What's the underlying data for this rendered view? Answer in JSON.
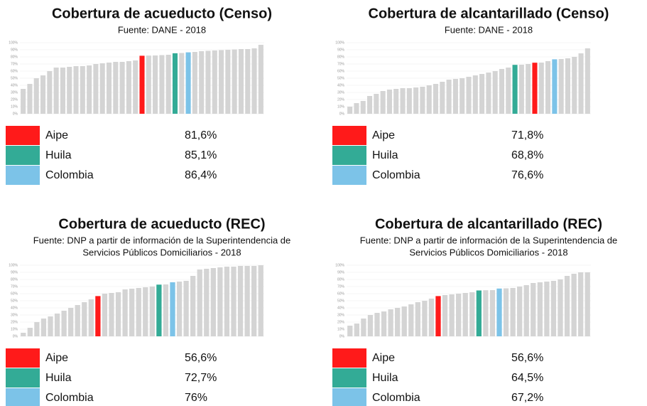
{
  "chart_data": [
    {
      "type": "bar",
      "title": "Cobertura de acueducto (Censo)",
      "subtitle": [
        "Fuente: DANE - 2018"
      ],
      "values": [
        35,
        42,
        50,
        54,
        60,
        65,
        65,
        66,
        67,
        67,
        68,
        70,
        71,
        72,
        73,
        73,
        74,
        75,
        81.6,
        81.8,
        82,
        82.5,
        83,
        85.1,
        85.5,
        86.4,
        87,
        88,
        88.5,
        89,
        89.5,
        90,
        90.5,
        91,
        91,
        92,
        97
      ],
      "colors": [
        "#d4d4d4",
        "#d4d4d4",
        "#d4d4d4",
        "#d4d4d4",
        "#d4d4d4",
        "#d4d4d4",
        "#d4d4d4",
        "#d4d4d4",
        "#d4d4d4",
        "#d4d4d4",
        "#d4d4d4",
        "#d4d4d4",
        "#d4d4d4",
        "#d4d4d4",
        "#d4d4d4",
        "#d4d4d4",
        "#d4d4d4",
        "#d4d4d4",
        "#ff1a1a",
        "#d4d4d4",
        "#d4d4d4",
        "#d4d4d4",
        "#d4d4d4",
        "#33ab96",
        "#d4d4d4",
        "#7cc3e8",
        "#d4d4d4",
        "#d4d4d4",
        "#d4d4d4",
        "#d4d4d4",
        "#d4d4d4",
        "#d4d4d4",
        "#d4d4d4",
        "#d4d4d4",
        "#d4d4d4",
        "#d4d4d4",
        "#d4d4d4"
      ],
      "ylim": [
        0,
        100
      ],
      "yticks": [
        {
          "value": 0,
          "label": "0%"
        },
        {
          "value": 10,
          "label": "10%"
        },
        {
          "value": 20,
          "label": "20%"
        },
        {
          "value": 30,
          "label": "30%"
        },
        {
          "value": 40,
          "label": "40%"
        },
        {
          "value": 50,
          "label": "50%"
        },
        {
          "value": 60,
          "label": "60%"
        },
        {
          "value": 70,
          "label": "70%"
        },
        {
          "value": 80,
          "label": "80%"
        },
        {
          "value": 90,
          "label": "90%"
        },
        {
          "value": 100,
          "label": "100%"
        }
      ],
      "grid": true,
      "legend": [
        {
          "name": "Aipe",
          "color": "#ff1a1a",
          "value": 81.6,
          "label": "81,6%"
        },
        {
          "name": "Huila",
          "color": "#33ab96",
          "value": 85.1,
          "label": "85,1%"
        },
        {
          "name": "Colombia",
          "color": "#7cc3e8",
          "value": 86.4,
          "label": "86,4%"
        }
      ]
    },
    {
      "type": "bar",
      "title": "Cobertura de alcantarillado (Censo)",
      "subtitle": [
        "Fuente: DANE - 2018"
      ],
      "values": [
        10,
        15,
        18,
        25,
        28,
        32,
        34,
        35,
        36,
        36,
        37,
        38,
        40,
        42,
        45,
        48,
        49,
        50,
        52,
        54,
        56,
        58,
        60,
        63,
        65,
        68.8,
        69,
        70,
        71.8,
        72,
        74,
        76.6,
        77,
        78,
        80,
        85,
        92
      ],
      "colors": [
        "#d4d4d4",
        "#d4d4d4",
        "#d4d4d4",
        "#d4d4d4",
        "#d4d4d4",
        "#d4d4d4",
        "#d4d4d4",
        "#d4d4d4",
        "#d4d4d4",
        "#d4d4d4",
        "#d4d4d4",
        "#d4d4d4",
        "#d4d4d4",
        "#d4d4d4",
        "#d4d4d4",
        "#d4d4d4",
        "#d4d4d4",
        "#d4d4d4",
        "#d4d4d4",
        "#d4d4d4",
        "#d4d4d4",
        "#d4d4d4",
        "#d4d4d4",
        "#d4d4d4",
        "#d4d4d4",
        "#33ab96",
        "#d4d4d4",
        "#d4d4d4",
        "#ff1a1a",
        "#d4d4d4",
        "#d4d4d4",
        "#7cc3e8",
        "#d4d4d4",
        "#d4d4d4",
        "#d4d4d4",
        "#d4d4d4",
        "#d4d4d4"
      ],
      "ylim": [
        0,
        100
      ],
      "yticks": [
        {
          "value": 0,
          "label": "0%"
        },
        {
          "value": 10,
          "label": "10%"
        },
        {
          "value": 20,
          "label": "20%"
        },
        {
          "value": 30,
          "label": "30%"
        },
        {
          "value": 40,
          "label": "40%"
        },
        {
          "value": 50,
          "label": "50%"
        },
        {
          "value": 60,
          "label": "60%"
        },
        {
          "value": 70,
          "label": "70%"
        },
        {
          "value": 80,
          "label": "80%"
        },
        {
          "value": 90,
          "label": "90%"
        },
        {
          "value": 100,
          "label": "100%"
        }
      ],
      "grid": true,
      "legend": [
        {
          "name": "Aipe",
          "color": "#ff1a1a",
          "value": 71.8,
          "label": "71,8%"
        },
        {
          "name": "Huila",
          "color": "#33ab96",
          "value": 68.8,
          "label": "68,8%"
        },
        {
          "name": "Colombia",
          "color": "#7cc3e8",
          "value": 76.6,
          "label": "76,6%"
        }
      ]
    },
    {
      "type": "bar",
      "title": "Cobertura de acueducto (REC)",
      "subtitle": [
        "Fuente: DNP a partir de información de la Superintendencia de",
        "Servicios Públicos Domiciliarios - 2018"
      ],
      "values": [
        5,
        12,
        20,
        25,
        28,
        32,
        36,
        40,
        44,
        48,
        52,
        56.6,
        60,
        61,
        62,
        66,
        67,
        68,
        69,
        70,
        72.7,
        73,
        76,
        77,
        78,
        85,
        94,
        95,
        96,
        97,
        98,
        98,
        99,
        99,
        99,
        100
      ],
      "colors": [
        "#d4d4d4",
        "#d4d4d4",
        "#d4d4d4",
        "#d4d4d4",
        "#d4d4d4",
        "#d4d4d4",
        "#d4d4d4",
        "#d4d4d4",
        "#d4d4d4",
        "#d4d4d4",
        "#d4d4d4",
        "#ff1a1a",
        "#d4d4d4",
        "#d4d4d4",
        "#d4d4d4",
        "#d4d4d4",
        "#d4d4d4",
        "#d4d4d4",
        "#d4d4d4",
        "#d4d4d4",
        "#33ab96",
        "#d4d4d4",
        "#7cc3e8",
        "#d4d4d4",
        "#d4d4d4",
        "#d4d4d4",
        "#d4d4d4",
        "#d4d4d4",
        "#d4d4d4",
        "#d4d4d4",
        "#d4d4d4",
        "#d4d4d4",
        "#d4d4d4",
        "#d4d4d4",
        "#d4d4d4",
        "#d4d4d4"
      ],
      "ylim": [
        0,
        100
      ],
      "yticks": [
        {
          "value": 0,
          "label": "0%"
        },
        {
          "value": 10,
          "label": "10%"
        },
        {
          "value": 20,
          "label": "20%"
        },
        {
          "value": 30,
          "label": "30%"
        },
        {
          "value": 40,
          "label": "40%"
        },
        {
          "value": 50,
          "label": "50%"
        },
        {
          "value": 60,
          "label": "60%"
        },
        {
          "value": 70,
          "label": "70%"
        },
        {
          "value": 80,
          "label": "80%"
        },
        {
          "value": 90,
          "label": "90%"
        },
        {
          "value": 100,
          "label": "100%"
        }
      ],
      "grid": true,
      "legend": [
        {
          "name": "Aipe",
          "color": "#ff1a1a",
          "value": 56.6,
          "label": "56,6%"
        },
        {
          "name": "Huila",
          "color": "#33ab96",
          "value": 72.7,
          "label": "72,7%"
        },
        {
          "name": "Colombia",
          "color": "#7cc3e8",
          "value": 76,
          "label": "76%"
        }
      ]
    },
    {
      "type": "bar",
      "title": "Cobertura de alcantarillado (REC)",
      "subtitle": [
        "Fuente: DNP a partir de información de la Superintendencia de",
        "Servicios Públicos Domiciliarios - 2018"
      ],
      "values": [
        15,
        18,
        25,
        30,
        33,
        35,
        38,
        40,
        42,
        45,
        48,
        50,
        53,
        56.6,
        58,
        59,
        60,
        61,
        62,
        64.5,
        64.8,
        65,
        67.2,
        67.5,
        68,
        70,
        72,
        75,
        76,
        77,
        78,
        80,
        85,
        88,
        90,
        90
      ],
      "colors": [
        "#d4d4d4",
        "#d4d4d4",
        "#d4d4d4",
        "#d4d4d4",
        "#d4d4d4",
        "#d4d4d4",
        "#d4d4d4",
        "#d4d4d4",
        "#d4d4d4",
        "#d4d4d4",
        "#d4d4d4",
        "#d4d4d4",
        "#d4d4d4",
        "#ff1a1a",
        "#d4d4d4",
        "#d4d4d4",
        "#d4d4d4",
        "#d4d4d4",
        "#d4d4d4",
        "#33ab96",
        "#d4d4d4",
        "#d4d4d4",
        "#7cc3e8",
        "#d4d4d4",
        "#d4d4d4",
        "#d4d4d4",
        "#d4d4d4",
        "#d4d4d4",
        "#d4d4d4",
        "#d4d4d4",
        "#d4d4d4",
        "#d4d4d4",
        "#d4d4d4",
        "#d4d4d4",
        "#d4d4d4",
        "#d4d4d4"
      ],
      "ylim": [
        0,
        100
      ],
      "yticks": [
        {
          "value": 0,
          "label": "0%"
        },
        {
          "value": 10,
          "label": "10%"
        },
        {
          "value": 20,
          "label": "20%"
        },
        {
          "value": 30,
          "label": "30%"
        },
        {
          "value": 40,
          "label": "40%"
        },
        {
          "value": 50,
          "label": "50%"
        },
        {
          "value": 60,
          "label": "60%"
        },
        {
          "value": 70,
          "label": "70%"
        },
        {
          "value": 80,
          "label": "80%"
        },
        {
          "value": 90,
          "label": "90%"
        },
        {
          "value": 100,
          "label": "100%"
        }
      ],
      "grid": true,
      "legend": [
        {
          "name": "Aipe",
          "color": "#ff1a1a",
          "value": 56.6,
          "label": "56,6%"
        },
        {
          "name": "Huila",
          "color": "#33ab96",
          "value": 64.5,
          "label": "64,5%"
        },
        {
          "name": "Colombia",
          "color": "#7cc3e8",
          "value": 67.2,
          "label": "67,2%"
        }
      ]
    }
  ]
}
